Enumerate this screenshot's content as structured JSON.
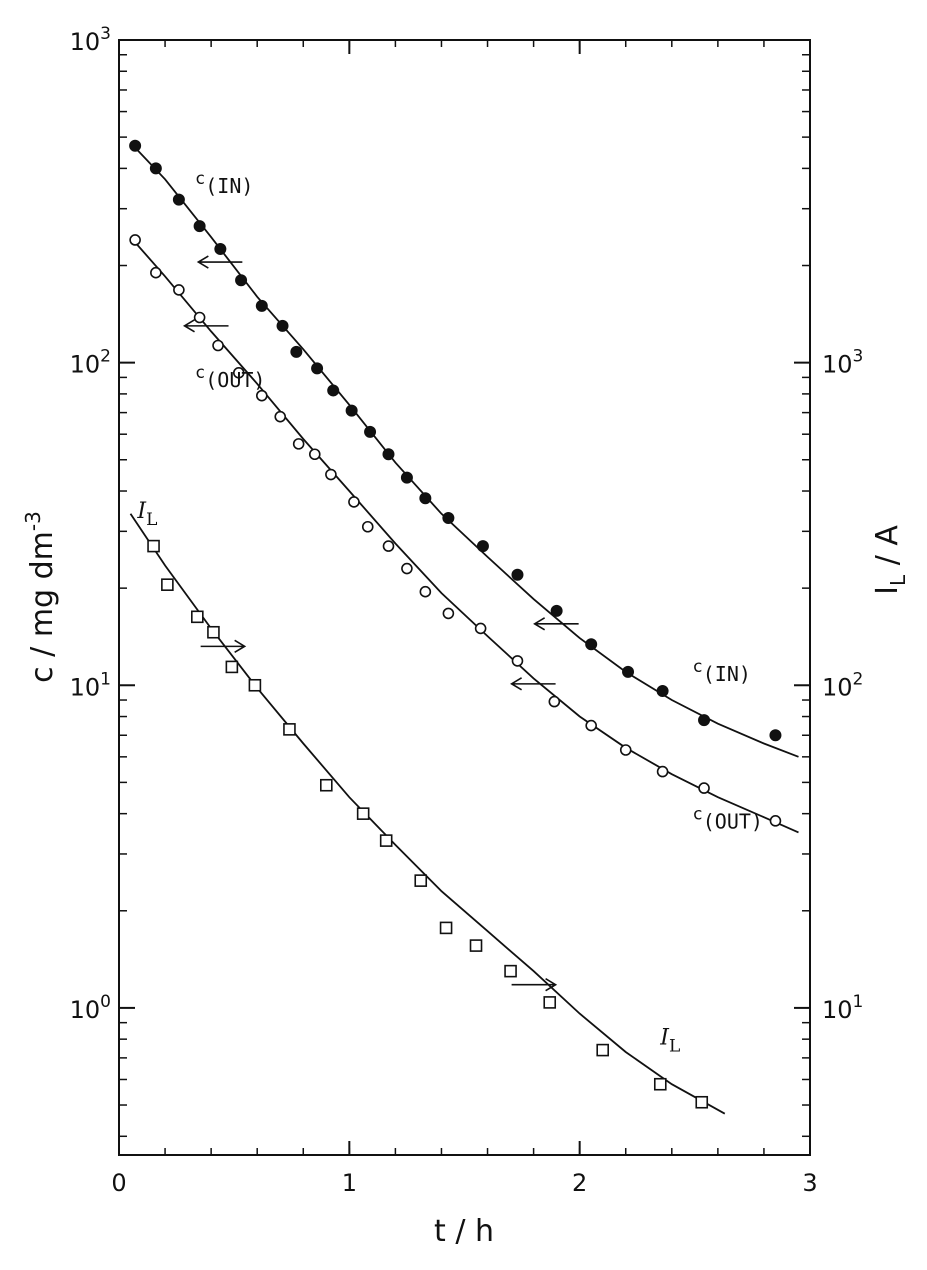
{
  "chart_data": {
    "type": "scatter",
    "xlabel": "t / h",
    "ylabel_left": "c / mg dm",
    "ylabel_left_sup": "-3",
    "ylabel_right": "I",
    "ylabel_right_sub": "L",
    "ylabel_right_unit": " / A",
    "xlim": [
      0,
      3
    ],
    "ylim_left": [
      0.35,
      1000
    ],
    "ylim_right": [
      3.5,
      10000
    ],
    "yscale": "log",
    "x_ticks": [
      {
        "v": 0,
        "label": "0"
      },
      {
        "v": 1,
        "label": "1"
      },
      {
        "v": 2,
        "label": "2"
      },
      {
        "v": 3,
        "label": "3"
      }
    ],
    "left_ticks": [
      {
        "base": "10",
        "exp": "0",
        "v": 1
      },
      {
        "base": "10",
        "exp": "1",
        "v": 10
      },
      {
        "base": "10",
        "exp": "2",
        "v": 100
      },
      {
        "base": "10",
        "exp": "3",
        "v": 1000
      }
    ],
    "right_ticks": [
      {
        "base": "10",
        "exp": "1",
        "v": 10
      },
      {
        "base": "10",
        "exp": "2",
        "v": 100
      },
      {
        "base": "10",
        "exp": "3",
        "v": 1000
      }
    ],
    "grid": false,
    "series": [
      {
        "axis": "left",
        "marker": "filled-circle",
        "x": [
          0.07,
          0.16,
          0.26,
          0.35,
          0.44,
          0.53,
          0.62,
          0.71,
          0.77,
          0.86,
          0.93,
          1.01,
          1.09,
          1.17,
          1.25,
          1.33,
          1.43,
          1.58,
          1.73,
          1.9,
          2.05,
          2.21,
          2.36,
          2.54,
          2.85
        ],
        "y": [
          470,
          400,
          320,
          265,
          225,
          180,
          150,
          130,
          108,
          96,
          82,
          71,
          61,
          52,
          44,
          38,
          33,
          27,
          22,
          17,
          13.4,
          11,
          9.6,
          7.8,
          7
        ]
      },
      {
        "axis": "left",
        "marker": "open-circle",
        "x": [
          0.07,
          0.16,
          0.26,
          0.35,
          0.43,
          0.52,
          0.62,
          0.7,
          0.78,
          0.85,
          0.92,
          1.02,
          1.08,
          1.17,
          1.25,
          1.33,
          1.43,
          1.57,
          1.73,
          1.89,
          2.05,
          2.2,
          2.36,
          2.54,
          2.85
        ],
        "y": [
          240,
          190,
          168,
          138,
          113,
          93,
          79,
          68,
          56,
          52,
          45,
          37,
          31,
          27,
          23,
          19.5,
          16.7,
          15,
          11.9,
          8.9,
          7.5,
          6.3,
          5.4,
          4.8,
          3.8
        ]
      },
      {
        "axis": "right",
        "marker": "open-square",
        "x": [
          0.15,
          0.21,
          0.34,
          0.41,
          0.49,
          0.59,
          0.74,
          0.9,
          1.06,
          1.16,
          1.31,
          1.42,
          1.55,
          1.7,
          1.87,
          2.1,
          2.35,
          2.53
        ],
        "y": [
          270,
          205,
          163,
          146,
          114,
          100,
          73,
          49,
          40,
          33,
          24.8,
          17.7,
          15.6,
          13,
          10.4,
          7.4,
          5.8,
          5.1
        ]
      }
    ],
    "curves": [
      {
        "axis": "left",
        "x": [
          0.05,
          0.2,
          0.4,
          0.6,
          0.8,
          1.0,
          1.2,
          1.4,
          1.6,
          1.8,
          2.0,
          2.2,
          2.4,
          2.6,
          2.8,
          2.95
        ],
        "y": [
          480,
          370,
          245,
          160,
          110,
          74,
          49,
          34,
          25,
          18.5,
          14,
          11,
          9,
          7.6,
          6.6,
          6
        ]
      },
      {
        "axis": "left",
        "x": [
          0.05,
          0.2,
          0.4,
          0.6,
          0.8,
          1.0,
          1.2,
          1.4,
          1.6,
          1.8,
          2.0,
          2.2,
          2.4,
          2.6,
          2.8,
          2.95
        ],
        "y": [
          245,
          185,
          125,
          86,
          58,
          40,
          27.5,
          19.3,
          14.2,
          10.5,
          8,
          6.4,
          5.3,
          4.5,
          3.9,
          3.5
        ]
      },
      {
        "axis": "right",
        "x": [
          0.05,
          0.2,
          0.4,
          0.6,
          0.8,
          1.0,
          1.2,
          1.4,
          1.6,
          1.8,
          2.0,
          2.2,
          2.4,
          2.63
        ],
        "y": [
          340,
          235,
          150,
          98,
          66,
          45,
          32,
          23,
          17.3,
          13,
          9.6,
          7.3,
          5.8,
          4.7
        ]
      }
    ],
    "arrows": [
      {
        "axis": "left",
        "x": 0.44,
        "y": 205,
        "dir": "left"
      },
      {
        "axis": "left",
        "x": 0.38,
        "y": 130,
        "dir": "left"
      },
      {
        "axis": "left",
        "x": 1.9,
        "y": 15.5,
        "dir": "left"
      },
      {
        "axis": "left",
        "x": 1.8,
        "y": 10.1,
        "dir": "left"
      },
      {
        "axis": "right",
        "x": 0.45,
        "y": 132,
        "dir": "right"
      },
      {
        "axis": "right",
        "x": 1.8,
        "y": 11.8,
        "dir": "right"
      }
    ],
    "annotations": [
      {
        "text": "c",
        "sub": "(IN)",
        "axis": "left",
        "x": 0.33,
        "y": 335,
        "style": "mono"
      },
      {
        "text": "c",
        "sub": "(OUT)",
        "axis": "left",
        "x": 0.33,
        "y": 84,
        "style": "mono"
      },
      {
        "text": "I",
        "sub": "L",
        "axis": "left",
        "x": 0.08,
        "y": 33,
        "style": "italic"
      },
      {
        "text": "c",
        "sub": "(IN)",
        "axis": "left",
        "x": 2.49,
        "y": 10.3,
        "style": "mono"
      },
      {
        "text": "c",
        "sub": "(OUT)",
        "axis": "left",
        "x": 2.49,
        "y": 3.6,
        "style": "mono"
      },
      {
        "text": "I",
        "sub": "L",
        "axis": "left",
        "x": 2.35,
        "y": 0.77,
        "style": "italic"
      }
    ]
  }
}
